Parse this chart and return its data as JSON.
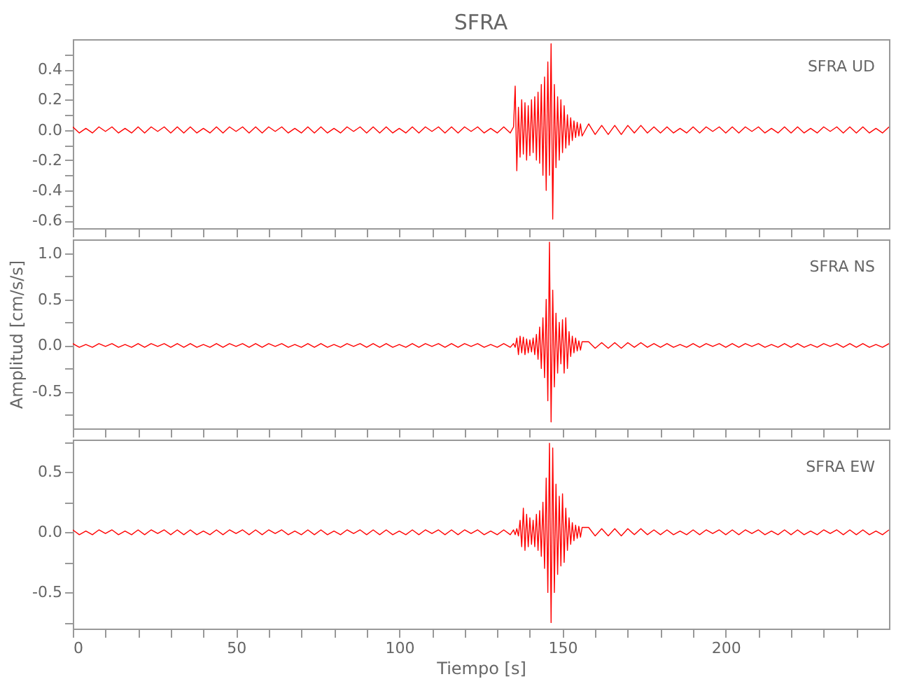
{
  "chart_data": [
    {
      "type": "line",
      "title": "SFRA",
      "annotations": [
        "SFRA  UD"
      ],
      "tick_labels": "y",
      "color": "#ff0000",
      "x": [
        0,
        2,
        4,
        6,
        8,
        10,
        12,
        14,
        16,
        18,
        20,
        22,
        24,
        26,
        28,
        30,
        32,
        34,
        36,
        38,
        40,
        42,
        44,
        46,
        48,
        50,
        52,
        54,
        56,
        58,
        60,
        62,
        64,
        66,
        68,
        70,
        72,
        74,
        76,
        78,
        80,
        82,
        84,
        86,
        88,
        90,
        92,
        94,
        96,
        98,
        100,
        102,
        104,
        106,
        108,
        110,
        112,
        114,
        116,
        118,
        120,
        122,
        124,
        126,
        128,
        130,
        132,
        134,
        135,
        135.5,
        136,
        136.5,
        137,
        137.5,
        138,
        138.5,
        139,
        139.5,
        140,
        140.5,
        141,
        141.5,
        142,
        142.5,
        143,
        143.5,
        144,
        144.5,
        145,
        145.5,
        146,
        146.5,
        147,
        147.5,
        148,
        148.5,
        149,
        149.5,
        150,
        150.5,
        151,
        151.5,
        152,
        152.5,
        153,
        153.5,
        154,
        154.5,
        155,
        155.5,
        156,
        158,
        160,
        162,
        164,
        166,
        168,
        170,
        172,
        174,
        176,
        178,
        180,
        182,
        184,
        186,
        188,
        190,
        192,
        194,
        196,
        198,
        200,
        202,
        204,
        206,
        208,
        210,
        212,
        214,
        216,
        218,
        220,
        222,
        224,
        226,
        228,
        230,
        232,
        234,
        236,
        238,
        240,
        242,
        244,
        246,
        248,
        250
      ],
      "values": [
        0.02,
        -0.02,
        0.01,
        -0.02,
        0.02,
        -0.01,
        0.02,
        -0.02,
        0.01,
        -0.02,
        0.02,
        -0.02,
        0.02,
        -0.01,
        0.02,
        -0.02,
        0.02,
        -0.02,
        0.02,
        -0.02,
        0.01,
        -0.02,
        0.02,
        -0.02,
        0.02,
        -0.01,
        0.02,
        -0.02,
        0.02,
        -0.02,
        0.02,
        -0.01,
        0.02,
        -0.02,
        0.01,
        -0.02,
        0.02,
        -0.02,
        0.02,
        -0.02,
        0.01,
        -0.02,
        0.02,
        -0.01,
        0.02,
        -0.02,
        0.02,
        -0.02,
        0.02,
        -0.02,
        0.01,
        -0.02,
        0.02,
        -0.02,
        0.02,
        -0.01,
        0.02,
        -0.02,
        0.02,
        -0.02,
        0.02,
        -0.01,
        0.02,
        -0.02,
        0.01,
        -0.02,
        0.02,
        -0.02,
        0.02,
        0.29,
        -0.27,
        0.15,
        -0.18,
        0.2,
        -0.16,
        0.18,
        -0.2,
        0.16,
        -0.17,
        0.2,
        -0.15,
        0.22,
        -0.2,
        0.25,
        -0.22,
        0.3,
        -0.3,
        0.35,
        -0.4,
        0.45,
        -0.3,
        0.57,
        -0.59,
        0.3,
        -0.25,
        0.22,
        -0.2,
        0.2,
        -0.15,
        0.16,
        -0.12,
        0.1,
        -0.1,
        0.08,
        -0.07,
        0.06,
        -0.05,
        0.05,
        -0.04,
        0.04,
        -0.04,
        0.04,
        -0.03,
        0.03,
        -0.03,
        0.03,
        -0.03,
        0.03,
        -0.02,
        0.03,
        -0.02,
        0.02,
        -0.02,
        0.02,
        -0.02,
        0.01,
        -0.02,
        0.02,
        -0.02,
        0.02,
        -0.01,
        0.02,
        -0.02,
        0.02,
        -0.02,
        0.02,
        -0.01,
        0.02,
        -0.02,
        0.01,
        -0.02,
        0.02,
        -0.02,
        0.02,
        -0.02,
        0.01,
        -0.02,
        0.02,
        -0.01,
        0.02,
        -0.02,
        0.02,
        -0.02,
        0.02,
        -0.02,
        0.01,
        -0.02,
        0.02
      ],
      "xlim": [
        0,
        250
      ],
      "xticks": [
        0,
        {
          "value": 10,
          "label": null
        },
        {
          "value": 20,
          "label": null
        },
        {
          "value": 30,
          "label": null
        },
        {
          "value": 40,
          "label": null
        },
        50,
        {
          "value": 60,
          "label": null
        },
        {
          "value": 70,
          "label": null
        },
        {
          "value": 80,
          "label": null
        },
        {
          "value": 90,
          "label": null
        },
        100,
        {
          "value": 110,
          "label": null
        },
        {
          "value": 120,
          "label": null
        },
        {
          "value": 130,
          "label": null
        },
        {
          "value": 140,
          "label": null
        },
        150,
        {
          "value": 160,
          "label": null
        },
        {
          "value": 170,
          "label": null
        },
        {
          "value": 180,
          "label": null
        },
        {
          "value": 190,
          "label": null
        },
        200,
        {
          "value": 210,
          "label": null
        },
        {
          "value": 220,
          "label": null
        },
        {
          "value": 230,
          "label": null
        },
        {
          "value": 240,
          "label": null
        }
      ],
      "ylim": [
        -0.65,
        0.6
      ],
      "yticks": [
        {
          "value": 0.5,
          "label": null
        },
        0.4,
        {
          "value": 0.3,
          "label": null
        },
        0.2,
        {
          "value": 0.1,
          "label": null
        },
        {
          "value": 0,
          "label": "0.0"
        },
        {
          "value": -0.1,
          "label": null
        },
        -0.2,
        {
          "value": -0.3,
          "label": null
        },
        -0.4,
        {
          "value": -0.5,
          "label": null
        },
        -0.6
      ]
    },
    {
      "type": "line",
      "ylabel": "Amplitud [cm/s/s]",
      "annotations": [
        "SFRA  NS"
      ],
      "tick_labels": "y",
      "color": "#ff0000",
      "x": [
        0,
        2,
        4,
        6,
        8,
        10,
        12,
        14,
        16,
        18,
        20,
        22,
        24,
        26,
        28,
        30,
        32,
        34,
        36,
        38,
        40,
        42,
        44,
        46,
        48,
        50,
        52,
        54,
        56,
        58,
        60,
        62,
        64,
        66,
        68,
        70,
        72,
        74,
        76,
        78,
        80,
        82,
        84,
        86,
        88,
        90,
        92,
        94,
        96,
        98,
        100,
        102,
        104,
        106,
        108,
        110,
        112,
        114,
        116,
        118,
        120,
        122,
        124,
        126,
        128,
        130,
        132,
        134,
        135,
        135.5,
        136,
        136.5,
        137,
        137.5,
        138,
        138.5,
        139,
        139.5,
        140,
        140.5,
        141,
        141.5,
        142,
        142.5,
        143,
        143.5,
        144,
        144.5,
        145,
        145.5,
        146,
        146.5,
        147,
        147.5,
        148,
        148.5,
        149,
        149.5,
        150,
        150.5,
        151,
        151.5,
        152,
        152.5,
        153,
        153.5,
        154,
        154.5,
        155,
        155.5,
        156,
        158,
        160,
        162,
        164,
        166,
        168,
        170,
        172,
        174,
        176,
        178,
        180,
        182,
        184,
        186,
        188,
        190,
        192,
        194,
        196,
        198,
        200,
        202,
        204,
        206,
        208,
        210,
        212,
        214,
        216,
        218,
        220,
        222,
        224,
        226,
        228,
        230,
        232,
        234,
        236,
        238,
        240,
        242,
        244,
        246,
        248,
        250
      ],
      "values": [
        0.02,
        -0.02,
        0.01,
        -0.02,
        0.02,
        -0.01,
        0.02,
        -0.02,
        0.01,
        -0.02,
        0.02,
        -0.02,
        0.02,
        -0.01,
        0.02,
        -0.02,
        0.02,
        -0.02,
        0.02,
        -0.02,
        0.01,
        -0.02,
        0.02,
        -0.02,
        0.02,
        -0.01,
        0.02,
        -0.02,
        0.02,
        -0.02,
        0.02,
        -0.01,
        0.02,
        -0.02,
        0.01,
        -0.02,
        0.02,
        -0.02,
        0.02,
        -0.02,
        0.01,
        -0.02,
        0.02,
        -0.01,
        0.02,
        -0.02,
        0.02,
        -0.02,
        0.02,
        -0.02,
        0.01,
        -0.02,
        0.02,
        -0.02,
        0.02,
        -0.01,
        0.02,
        -0.02,
        0.02,
        -0.02,
        0.02,
        -0.01,
        0.02,
        -0.02,
        0.01,
        -0.02,
        0.02,
        -0.02,
        0.02,
        -0.02,
        0.08,
        -0.1,
        0.1,
        -0.08,
        0.09,
        -0.1,
        0.07,
        -0.08,
        0.06,
        -0.07,
        0.08,
        -0.1,
        0.12,
        -0.15,
        0.2,
        -0.25,
        0.3,
        -0.35,
        0.5,
        -0.6,
        1.12,
        -0.83,
        0.6,
        -0.45,
        0.35,
        -0.3,
        0.25,
        -0.2,
        0.28,
        -0.3,
        0.3,
        -0.25,
        0.15,
        -0.12,
        0.1,
        -0.08,
        0.08,
        -0.06,
        0.05,
        -0.05,
        0.04,
        0.04,
        -0.03,
        0.03,
        -0.03,
        0.03,
        -0.03,
        0.03,
        -0.02,
        0.03,
        -0.02,
        0.02,
        -0.02,
        0.02,
        -0.02,
        0.01,
        -0.02,
        0.02,
        -0.02,
        0.02,
        -0.01,
        0.02,
        -0.02,
        0.02,
        -0.02,
        0.02,
        -0.01,
        0.02,
        -0.02,
        0.01,
        -0.02,
        0.02,
        -0.02,
        0.02,
        -0.02,
        0.01,
        -0.02,
        0.02,
        -0.01,
        0.02,
        -0.02,
        0.02,
        -0.02,
        0.02,
        -0.02,
        0.01,
        -0.02,
        0.02
      ],
      "xlim": [
        0,
        250
      ],
      "xticks": [
        0,
        {
          "value": 10,
          "label": null
        },
        {
          "value": 20,
          "label": null
        },
        {
          "value": 30,
          "label": null
        },
        {
          "value": 40,
          "label": null
        },
        50,
        {
          "value": 60,
          "label": null
        },
        {
          "value": 70,
          "label": null
        },
        {
          "value": 80,
          "label": null
        },
        {
          "value": 90,
          "label": null
        },
        100,
        {
          "value": 110,
          "label": null
        },
        {
          "value": 120,
          "label": null
        },
        {
          "value": 130,
          "label": null
        },
        {
          "value": 140,
          "label": null
        },
        150,
        {
          "value": 160,
          "label": null
        },
        {
          "value": 170,
          "label": null
        },
        {
          "value": 180,
          "label": null
        },
        {
          "value": 190,
          "label": null
        },
        200,
        {
          "value": 210,
          "label": null
        },
        {
          "value": 220,
          "label": null
        },
        {
          "value": 230,
          "label": null
        },
        {
          "value": 240,
          "label": null
        }
      ],
      "ylim": [
        -0.9,
        1.15
      ],
      "yticks": [
        {
          "value": 1,
          "label": "1.0"
        },
        {
          "value": 0.75,
          "label": null
        },
        0.5,
        {
          "value": 0.25,
          "label": null
        },
        {
          "value": 0,
          "label": "0.0"
        },
        {
          "value": -0.25,
          "label": null
        },
        -0.5,
        {
          "value": -0.75,
          "label": null
        }
      ]
    },
    {
      "type": "line",
      "xlabel": "Tiempo [s]",
      "annotations": [
        "SFRA  EW"
      ],
      "color": "#ff0000",
      "x": [
        0,
        2,
        4,
        6,
        8,
        10,
        12,
        14,
        16,
        18,
        20,
        22,
        24,
        26,
        28,
        30,
        32,
        34,
        36,
        38,
        40,
        42,
        44,
        46,
        48,
        50,
        52,
        54,
        56,
        58,
        60,
        62,
        64,
        66,
        68,
        70,
        72,
        74,
        76,
        78,
        80,
        82,
        84,
        86,
        88,
        90,
        92,
        94,
        96,
        98,
        100,
        102,
        104,
        106,
        108,
        110,
        112,
        114,
        116,
        118,
        120,
        122,
        124,
        126,
        128,
        130,
        132,
        134,
        135,
        135.5,
        136,
        136.5,
        137,
        137.5,
        138,
        138.5,
        139,
        139.5,
        140,
        140.5,
        141,
        141.5,
        142,
        142.5,
        143,
        143.5,
        144,
        144.5,
        145,
        145.5,
        146,
        146.5,
        147,
        147.5,
        148,
        148.5,
        149,
        149.5,
        150,
        150.5,
        151,
        151.5,
        152,
        152.5,
        153,
        153.5,
        154,
        154.5,
        155,
        155.5,
        156,
        158,
        160,
        162,
        164,
        166,
        168,
        170,
        172,
        174,
        176,
        178,
        180,
        182,
        184,
        186,
        188,
        190,
        192,
        194,
        196,
        198,
        200,
        202,
        204,
        206,
        208,
        210,
        212,
        214,
        216,
        218,
        220,
        222,
        224,
        226,
        228,
        230,
        232,
        234,
        236,
        238,
        240,
        242,
        244,
        246,
        248,
        250
      ],
      "values": [
        0.02,
        -0.02,
        0.01,
        -0.02,
        0.02,
        -0.01,
        0.02,
        -0.02,
        0.01,
        -0.02,
        0.02,
        -0.02,
        0.02,
        -0.01,
        0.02,
        -0.02,
        0.02,
        -0.02,
        0.02,
        -0.02,
        0.01,
        -0.02,
        0.02,
        -0.02,
        0.02,
        -0.01,
        0.02,
        -0.02,
        0.02,
        -0.02,
        0.02,
        -0.01,
        0.02,
        -0.02,
        0.01,
        -0.02,
        0.02,
        -0.02,
        0.02,
        -0.02,
        0.01,
        -0.02,
        0.02,
        -0.01,
        0.02,
        -0.02,
        0.02,
        -0.02,
        0.02,
        -0.02,
        0.01,
        -0.02,
        0.02,
        -0.02,
        0.02,
        -0.01,
        0.02,
        -0.02,
        0.02,
        -0.02,
        0.02,
        -0.01,
        0.02,
        -0.02,
        0.01,
        -0.02,
        0.02,
        -0.02,
        0.02,
        -0.02,
        0.03,
        -0.03,
        0.1,
        -0.12,
        0.2,
        -0.15,
        0.15,
        -0.12,
        0.12,
        -0.1,
        0.1,
        -0.12,
        0.15,
        -0.15,
        0.18,
        -0.2,
        0.25,
        -0.3,
        0.45,
        -0.5,
        0.74,
        -0.75,
        0.7,
        -0.5,
        0.4,
        -0.35,
        0.3,
        -0.28,
        0.32,
        -0.25,
        0.2,
        -0.15,
        0.12,
        -0.1,
        0.08,
        -0.07,
        0.06,
        -0.05,
        0.05,
        -0.04,
        0.04,
        0.04,
        -0.03,
        0.03,
        -0.03,
        0.03,
        -0.03,
        0.03,
        -0.02,
        0.03,
        -0.02,
        0.02,
        -0.02,
        0.02,
        -0.02,
        0.01,
        -0.02,
        0.02,
        -0.02,
        0.02,
        -0.01,
        0.02,
        -0.02,
        0.02,
        -0.02,
        0.02,
        -0.01,
        0.02,
        -0.02,
        0.01,
        -0.02,
        0.02,
        -0.02,
        0.02,
        -0.02,
        0.01,
        -0.02,
        0.02,
        -0.01,
        0.02,
        -0.02,
        0.02,
        -0.02,
        0.02,
        -0.02,
        0.01,
        -0.02,
        0.02
      ],
      "xlim": [
        0,
        250
      ],
      "xticks": [
        0,
        {
          "value": 10,
          "label": null
        },
        {
          "value": 20,
          "label": null
        },
        {
          "value": 30,
          "label": null
        },
        {
          "value": 40,
          "label": null
        },
        50,
        {
          "value": 60,
          "label": null
        },
        {
          "value": 70,
          "label": null
        },
        {
          "value": 80,
          "label": null
        },
        {
          "value": 90,
          "label": null
        },
        100,
        {
          "value": 110,
          "label": null
        },
        {
          "value": 120,
          "label": null
        },
        {
          "value": 130,
          "label": null
        },
        {
          "value": 140,
          "label": null
        },
        150,
        {
          "value": 160,
          "label": null
        },
        {
          "value": 170,
          "label": null
        },
        {
          "value": 180,
          "label": null
        },
        {
          "value": 190,
          "label": null
        },
        200,
        {
          "value": 210,
          "label": null
        },
        {
          "value": 220,
          "label": null
        },
        {
          "value": 230,
          "label": null
        },
        {
          "value": 240,
          "label": null
        }
      ],
      "ylim": [
        -0.8,
        0.77
      ],
      "yticks": [
        {
          "value": 0.75,
          "label": null
        },
        0.5,
        {
          "value": 0.25,
          "label": null
        },
        {
          "value": 0,
          "label": "0.0"
        },
        {
          "value": -0.25,
          "label": null
        },
        -0.5,
        {
          "value": -0.75,
          "label": null
        }
      ]
    }
  ]
}
